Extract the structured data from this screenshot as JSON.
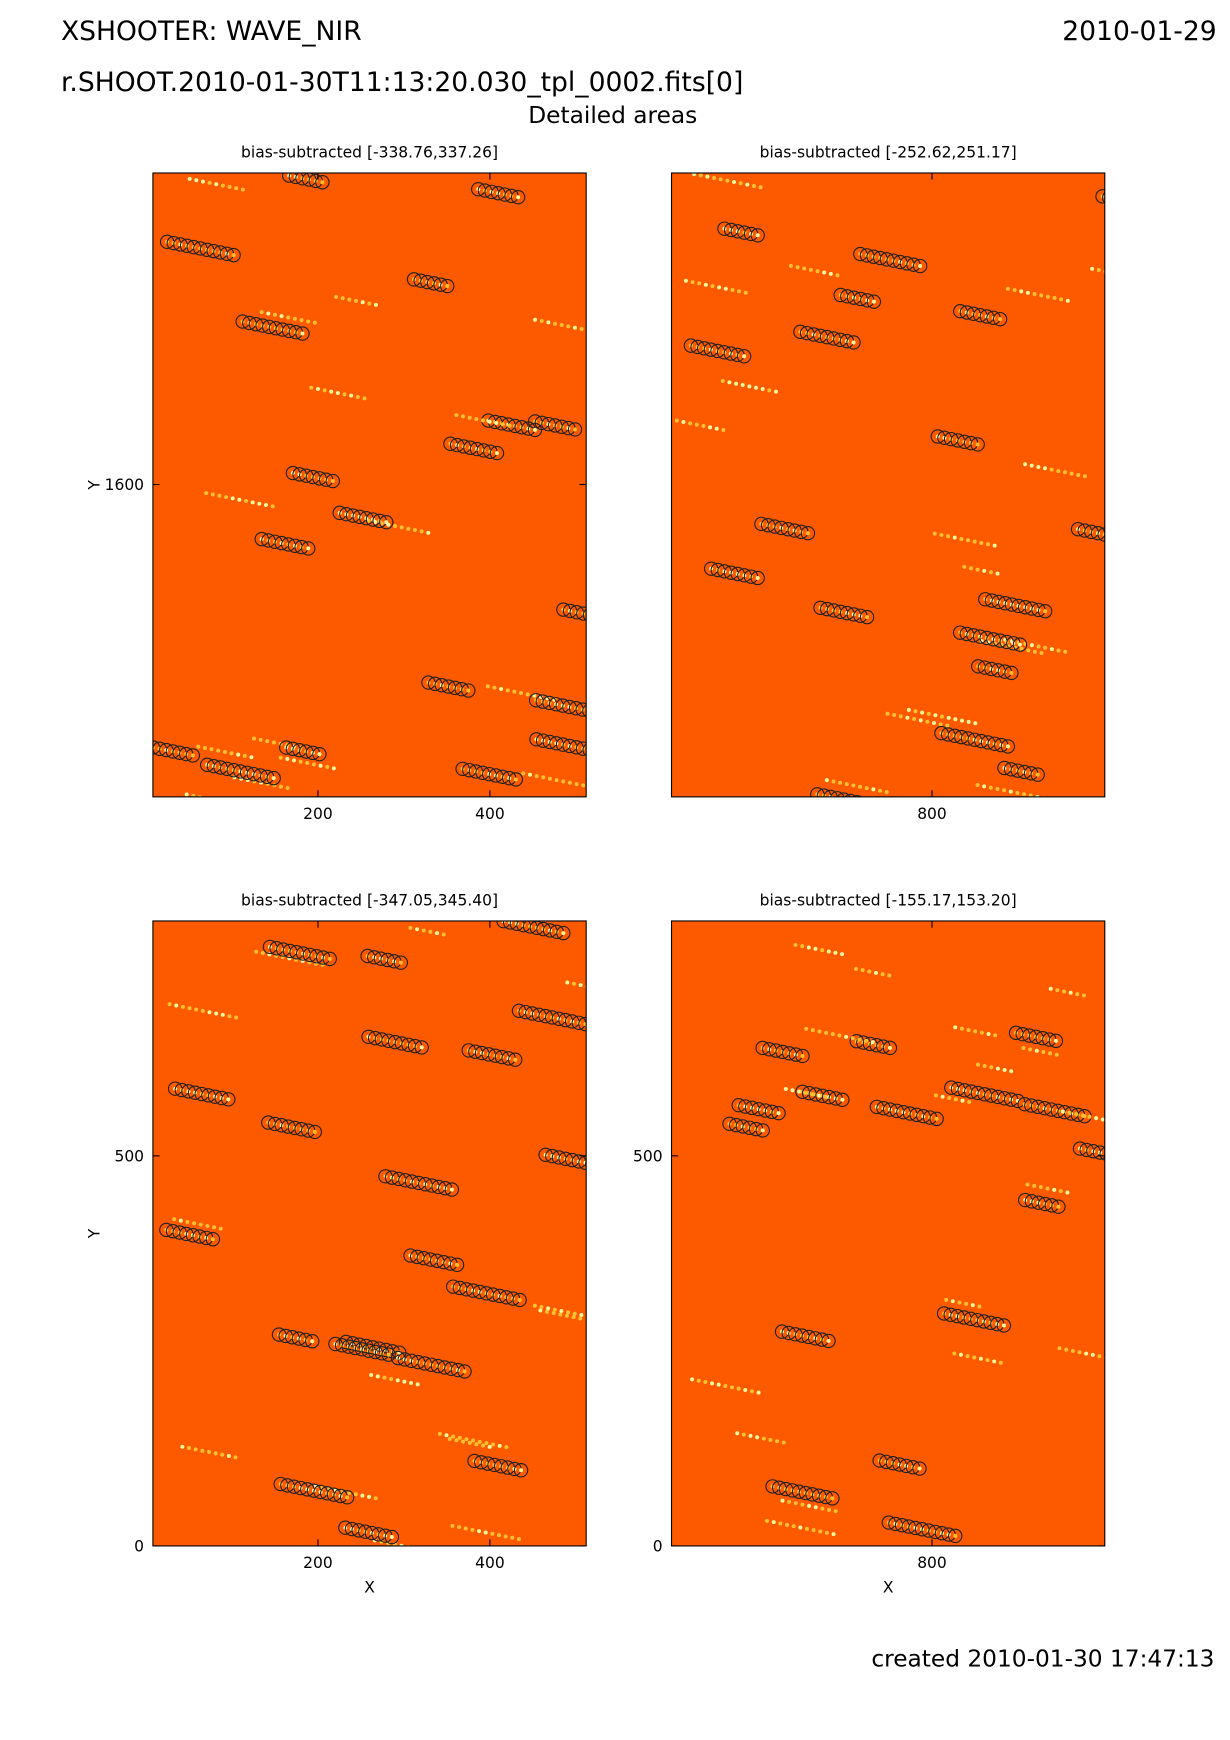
{
  "header": {
    "title": "XSHOOTER: WAVE_NIR",
    "date": "2010-01-29",
    "file": "r.SHOOT.2010-01-30T11:13:20.030_tpl_0002.fits[0]",
    "subtitle": "Detailed areas"
  },
  "footer": "created 2010-01-30 17:47:13",
  "chart_data": [
    {
      "type": "image",
      "title": "bias-subtracted [-338.76,337.26]",
      "ylabel": "Y",
      "xlim": [
        8,
        512
      ],
      "ylim": [
        1236,
        1963
      ],
      "xticks": [
        200,
        400
      ],
      "yticks": [
        1600
      ]
    },
    {
      "type": "image",
      "title": "bias-subtracted [-252.62,251.17]",
      "xlim": [
        497,
        1001
      ],
      "ylim": [
        1236,
        1963
      ],
      "xticks": [
        800
      ]
    },
    {
      "type": "image",
      "title": "bias-subtracted [-347.05,345.40]",
      "xlabel": "X",
      "ylabel": "Y",
      "xlim": [
        8,
        512
      ],
      "ylim": [
        0,
        801
      ],
      "xticks": [
        200,
        400
      ],
      "yticks": [
        0,
        500
      ]
    },
    {
      "type": "image",
      "title": "bias-subtracted [-155.17,153.20]",
      "xlabel": "X",
      "xlim": [
        497,
        1001
      ],
      "ylim": [
        0,
        801
      ],
      "xticks": [
        800
      ],
      "yticks": [
        0,
        500
      ]
    }
  ]
}
